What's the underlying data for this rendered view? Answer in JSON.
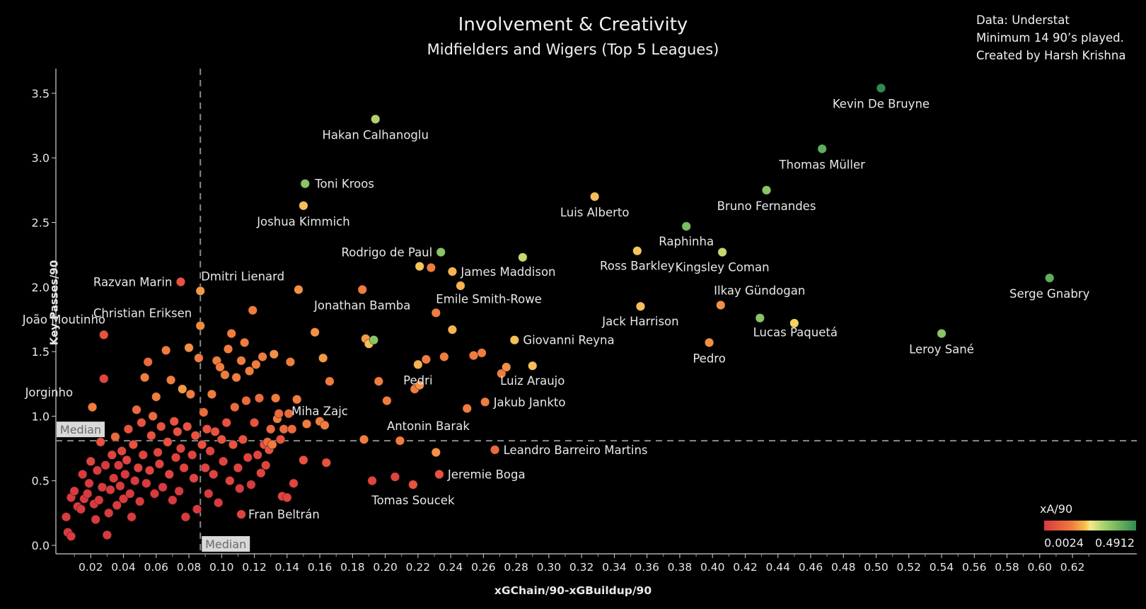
{
  "chart_data": {
    "type": "scatter",
    "title": "Involvement & Creativity",
    "subtitle": "Midfielders and Wigers (Top 5 Leagues)",
    "notes": [
      "Data: Understat",
      "Minimum 14 90’s played.",
      "Created by Harsh Krishna"
    ],
    "xlabel": "xGChain/90-xGBuildup/90",
    "ylabel": "Key Passes/90",
    "xlim": [
      0,
      0.64
    ],
    "ylim": [
      0,
      3.75
    ],
    "x_ticks": [
      "0.02",
      "0.04",
      "0.06",
      "0.08",
      "0.10",
      "0.12",
      "0.14",
      "0.16",
      "0.18",
      "0.20",
      "0.22",
      "0.24",
      "0.26",
      "0.28",
      "0.30",
      "0.32",
      "0.34",
      "0.36",
      "0.38",
      "0.40",
      "0.42",
      "0.44",
      "0.46",
      "0.48",
      "0.50",
      "0.52",
      "0.54",
      "0.56",
      "0.58",
      "0.60",
      "0.62"
    ],
    "y_ticks": [
      "0.0",
      "0.5",
      "1.0",
      "1.5",
      "2.0",
      "2.5",
      "3.0",
      "3.5"
    ],
    "grid": false,
    "median_x": 0.087,
    "median_y": 0.81,
    "median_label": "Median",
    "color_legend": {
      "title": "xA/90",
      "min_label": "0.0024",
      "max_label": "0.4912",
      "colors": [
        "#d93a3e",
        "#f5c24a",
        "#2e8b52"
      ]
    },
    "labeled_points": [
      {
        "name": "Kevin De Bruyne",
        "x": 0.503,
        "y": 3.54,
        "color": "#2e8b52"
      },
      {
        "name": "Hakan Calhanoglu",
        "x": 0.194,
        "y": 3.3,
        "color": "#b5cf6a"
      },
      {
        "name": "Thomas Müller",
        "x": 0.467,
        "y": 3.07,
        "color": "#5fae5e"
      },
      {
        "name": "Toni Kroos",
        "x": 0.151,
        "y": 2.8,
        "color": "#8cc466"
      },
      {
        "name": "Bruno Fernandes",
        "x": 0.433,
        "y": 2.75,
        "color": "#8cc466"
      },
      {
        "name": "Luis Alberto",
        "x": 0.328,
        "y": 2.7,
        "color": "#f6bf57"
      },
      {
        "name": "Joshua Kimmich",
        "x": 0.15,
        "y": 2.63,
        "color": "#f6bf57"
      },
      {
        "name": "Raphinha",
        "x": 0.384,
        "y": 2.47,
        "color": "#7bbd60"
      },
      {
        "name": "Rodrigo de Paul",
        "x": 0.234,
        "y": 2.27,
        "color": "#8cc466"
      },
      {
        "name": "Ross Barkley",
        "x": 0.354,
        "y": 2.28,
        "color": "#f6c55a"
      },
      {
        "name": "Kingsley Coman",
        "x": 0.406,
        "y": 2.27,
        "color": "#c7d870"
      },
      {
        "name": "James Maddison",
        "x": 0.241,
        "y": 2.12,
        "color": "#f6b350"
      },
      {
        "name": "Serge Gnabry",
        "x": 0.606,
        "y": 2.07,
        "color": "#5fae5e"
      },
      {
        "name": "Razvan Marin",
        "x": 0.075,
        "y": 2.04,
        "color": "#e8523f"
      },
      {
        "name": "Dmitri Lienard",
        "x": 0.087,
        "y": 1.97,
        "color": "#f49a45"
      },
      {
        "name": "Jonathan Bamba",
        "x": 0.186,
        "y": 1.98,
        "color": "#f07c3e"
      },
      {
        "name": "Ilkay Gündogan",
        "x": 0.405,
        "y": 1.86,
        "color": "#f49045"
      },
      {
        "name": "Jack Harrison",
        "x": 0.356,
        "y": 1.85,
        "color": "#f6bf57"
      },
      {
        "name": "Christian Eriksen",
        "x": 0.087,
        "y": 1.7,
        "color": "#f08a41"
      },
      {
        "name": "Emile Smith-Rowe",
        "x": 0.231,
        "y": 1.8,
        "color": "#f07c3e"
      },
      {
        "name": "Lucas Paquetá",
        "x": 0.429,
        "y": 1.76,
        "color": "#8cc466"
      },
      {
        "name": "João Moutinho",
        "x": 0.028,
        "y": 1.63,
        "color": "#e8523f"
      },
      {
        "name": "Giovanni Reyna",
        "x": 0.279,
        "y": 1.59,
        "color": "#f6bf57"
      },
      {
        "name": "Leroy Sané",
        "x": 0.54,
        "y": 1.64,
        "color": "#8cc466"
      },
      {
        "name": "Pedro",
        "x": 0.398,
        "y": 1.57,
        "color": "#f49045"
      },
      {
        "name": "Pedri",
        "x": 0.22,
        "y": 1.4,
        "color": "#f6b350"
      },
      {
        "name": "Luiz Araujo",
        "x": 0.29,
        "y": 1.39,
        "color": "#f6bf57"
      },
      {
        "name": "Jorginho",
        "x": 0.021,
        "y": 1.07,
        "color": "#f07c3e"
      },
      {
        "name": "Jakub Jankto",
        "x": 0.261,
        "y": 1.11,
        "color": "#f07c3e"
      },
      {
        "name": "Miha Zajc",
        "x": 0.163,
        "y": 0.93,
        "color": "#f07c3e"
      },
      {
        "name": "Antonin Barak",
        "x": 0.209,
        "y": 0.81,
        "color": "#f07c3e"
      },
      {
        "name": "Leandro Barreiro Martins",
        "x": 0.267,
        "y": 0.74,
        "color": "#ec6a3d"
      },
      {
        "name": "Jeremie Boga",
        "x": 0.233,
        "y": 0.55,
        "color": "#e8523f"
      },
      {
        "name": "Tomas Soucek",
        "x": 0.217,
        "y": 0.47,
        "color": "#e8523f"
      },
      {
        "name": "Fran Beltrán",
        "x": 0.112,
        "y": 0.24,
        "color": "#e0443e"
      }
    ],
    "points": [
      {
        "x": 0.005,
        "y": 0.22,
        "color": "#d93a3e"
      },
      {
        "x": 0.006,
        "y": 0.1,
        "color": "#d93a3e"
      },
      {
        "x": 0.008,
        "y": 0.07,
        "color": "#d93a3e"
      },
      {
        "x": 0.008,
        "y": 0.37,
        "color": "#d93a3e"
      },
      {
        "x": 0.01,
        "y": 0.42,
        "color": "#d93a3e"
      },
      {
        "x": 0.012,
        "y": 0.3,
        "color": "#d93a3e"
      },
      {
        "x": 0.014,
        "y": 0.28,
        "color": "#d93a3e"
      },
      {
        "x": 0.015,
        "y": 0.55,
        "color": "#d93a3e"
      },
      {
        "x": 0.016,
        "y": 0.36,
        "color": "#d93a3e"
      },
      {
        "x": 0.018,
        "y": 0.4,
        "color": "#d93a3e"
      },
      {
        "x": 0.019,
        "y": 0.48,
        "color": "#d93a3e"
      },
      {
        "x": 0.02,
        "y": 0.65,
        "color": "#e0443e"
      },
      {
        "x": 0.022,
        "y": 0.32,
        "color": "#d93a3e"
      },
      {
        "x": 0.023,
        "y": 0.2,
        "color": "#d93a3e"
      },
      {
        "x": 0.024,
        "y": 0.58,
        "color": "#d93a3e"
      },
      {
        "x": 0.025,
        "y": 0.35,
        "color": "#d93a3e"
      },
      {
        "x": 0.026,
        "y": 0.8,
        "color": "#e8523f"
      },
      {
        "x": 0.027,
        "y": 0.45,
        "color": "#d93a3e"
      },
      {
        "x": 0.028,
        "y": 1.29,
        "color": "#e0443e"
      },
      {
        "x": 0.029,
        "y": 0.62,
        "color": "#d93a3e"
      },
      {
        "x": 0.03,
        "y": 0.08,
        "color": "#d93a3e"
      },
      {
        "x": 0.031,
        "y": 0.25,
        "color": "#d93a3e"
      },
      {
        "x": 0.032,
        "y": 0.43,
        "color": "#d93a3e"
      },
      {
        "x": 0.033,
        "y": 0.7,
        "color": "#e0443e"
      },
      {
        "x": 0.034,
        "y": 0.52,
        "color": "#d93a3e"
      },
      {
        "x": 0.035,
        "y": 0.84,
        "color": "#ec6a3d"
      },
      {
        "x": 0.036,
        "y": 0.31,
        "color": "#d93a3e"
      },
      {
        "x": 0.037,
        "y": 0.62,
        "color": "#d93a3e"
      },
      {
        "x": 0.038,
        "y": 0.46,
        "color": "#d93a3e"
      },
      {
        "x": 0.039,
        "y": 0.73,
        "color": "#e0443e"
      },
      {
        "x": 0.04,
        "y": 0.36,
        "color": "#d93a3e"
      },
      {
        "x": 0.041,
        "y": 0.55,
        "color": "#d93a3e"
      },
      {
        "x": 0.042,
        "y": 0.66,
        "color": "#e0443e"
      },
      {
        "x": 0.043,
        "y": 0.9,
        "color": "#e8523f"
      },
      {
        "x": 0.044,
        "y": 0.4,
        "color": "#d93a3e"
      },
      {
        "x": 0.045,
        "y": 0.22,
        "color": "#d93a3e"
      },
      {
        "x": 0.046,
        "y": 0.78,
        "color": "#e8523f"
      },
      {
        "x": 0.047,
        "y": 0.5,
        "color": "#d93a3e"
      },
      {
        "x": 0.048,
        "y": 1.05,
        "color": "#ec6a3d"
      },
      {
        "x": 0.049,
        "y": 0.6,
        "color": "#e0443e"
      },
      {
        "x": 0.05,
        "y": 0.34,
        "color": "#d93a3e"
      },
      {
        "x": 0.051,
        "y": 0.95,
        "color": "#e8523f"
      },
      {
        "x": 0.052,
        "y": 0.7,
        "color": "#e0443e"
      },
      {
        "x": 0.053,
        "y": 1.3,
        "color": "#f07c3e"
      },
      {
        "x": 0.054,
        "y": 0.48,
        "color": "#d93a3e"
      },
      {
        "x": 0.055,
        "y": 1.42,
        "color": "#ec6a3d"
      },
      {
        "x": 0.056,
        "y": 0.58,
        "color": "#e0443e"
      },
      {
        "x": 0.057,
        "y": 0.85,
        "color": "#e8523f"
      },
      {
        "x": 0.058,
        "y": 1.0,
        "color": "#ec6a3d"
      },
      {
        "x": 0.059,
        "y": 0.4,
        "color": "#d93a3e"
      },
      {
        "x": 0.06,
        "y": 1.15,
        "color": "#f07c3e"
      },
      {
        "x": 0.061,
        "y": 0.72,
        "color": "#e0443e"
      },
      {
        "x": 0.062,
        "y": 0.63,
        "color": "#e0443e"
      },
      {
        "x": 0.063,
        "y": 0.92,
        "color": "#e8523f"
      },
      {
        "x": 0.064,
        "y": 0.45,
        "color": "#d93a3e"
      },
      {
        "x": 0.066,
        "y": 1.51,
        "color": "#f07c3e"
      },
      {
        "x": 0.067,
        "y": 0.8,
        "color": "#e8523f"
      },
      {
        "x": 0.068,
        "y": 0.55,
        "color": "#e0443e"
      },
      {
        "x": 0.069,
        "y": 1.28,
        "color": "#f07c3e"
      },
      {
        "x": 0.07,
        "y": 0.35,
        "color": "#d93a3e"
      },
      {
        "x": 0.071,
        "y": 0.96,
        "color": "#e8523f"
      },
      {
        "x": 0.072,
        "y": 0.68,
        "color": "#e0443e"
      },
      {
        "x": 0.073,
        "y": 0.88,
        "color": "#e8523f"
      },
      {
        "x": 0.074,
        "y": 0.42,
        "color": "#d93a3e"
      },
      {
        "x": 0.075,
        "y": 0.75,
        "color": "#e0443e"
      },
      {
        "x": 0.076,
        "y": 1.21,
        "color": "#f49a45"
      },
      {
        "x": 0.077,
        "y": 0.6,
        "color": "#e0443e"
      },
      {
        "x": 0.078,
        "y": 0.22,
        "color": "#d93a3e"
      },
      {
        "x": 0.079,
        "y": 0.92,
        "color": "#e8523f"
      },
      {
        "x": 0.08,
        "y": 1.53,
        "color": "#f49045"
      },
      {
        "x": 0.081,
        "y": 1.17,
        "color": "#f07c3e"
      },
      {
        "x": 0.082,
        "y": 0.7,
        "color": "#e0443e"
      },
      {
        "x": 0.083,
        "y": 0.52,
        "color": "#e0443e"
      },
      {
        "x": 0.084,
        "y": 0.85,
        "color": "#e8523f"
      },
      {
        "x": 0.085,
        "y": 0.28,
        "color": "#d93a3e"
      },
      {
        "x": 0.086,
        "y": 1.45,
        "color": "#f07c3e"
      },
      {
        "x": 0.088,
        "y": 0.78,
        "color": "#e8523f"
      },
      {
        "x": 0.089,
        "y": 1.03,
        "color": "#ec6a3d"
      },
      {
        "x": 0.09,
        "y": 0.6,
        "color": "#e0443e"
      },
      {
        "x": 0.091,
        "y": 0.9,
        "color": "#e8523f"
      },
      {
        "x": 0.092,
        "y": 0.4,
        "color": "#d93a3e"
      },
      {
        "x": 0.093,
        "y": 0.73,
        "color": "#e0443e"
      },
      {
        "x": 0.094,
        "y": 1.17,
        "color": "#f07c3e"
      },
      {
        "x": 0.095,
        "y": 0.55,
        "color": "#e0443e"
      },
      {
        "x": 0.096,
        "y": 0.88,
        "color": "#e8523f"
      },
      {
        "x": 0.097,
        "y": 1.43,
        "color": "#f07c3e"
      },
      {
        "x": 0.098,
        "y": 0.33,
        "color": "#d93a3e"
      },
      {
        "x": 0.099,
        "y": 1.38,
        "color": "#f07c3e"
      },
      {
        "x": 0.1,
        "y": 0.82,
        "color": "#e8523f"
      },
      {
        "x": 0.101,
        "y": 0.65,
        "color": "#e0443e"
      },
      {
        "x": 0.102,
        "y": 1.32,
        "color": "#f07c3e"
      },
      {
        "x": 0.103,
        "y": 0.95,
        "color": "#e8523f"
      },
      {
        "x": 0.104,
        "y": 1.52,
        "color": "#f07c3e"
      },
      {
        "x": 0.105,
        "y": 0.5,
        "color": "#e0443e"
      },
      {
        "x": 0.106,
        "y": 1.64,
        "color": "#f07c3e"
      },
      {
        "x": 0.107,
        "y": 0.78,
        "color": "#e8523f"
      },
      {
        "x": 0.108,
        "y": 1.07,
        "color": "#ec6a3d"
      },
      {
        "x": 0.109,
        "y": 1.3,
        "color": "#f07c3e"
      },
      {
        "x": 0.11,
        "y": 0.6,
        "color": "#e0443e"
      },
      {
        "x": 0.111,
        "y": 0.44,
        "color": "#d93a3e"
      },
      {
        "x": 0.112,
        "y": 1.43,
        "color": "#f07c3e"
      },
      {
        "x": 0.113,
        "y": 0.82,
        "color": "#e8523f"
      },
      {
        "x": 0.114,
        "y": 1.57,
        "color": "#f07c3e"
      },
      {
        "x": 0.115,
        "y": 1.12,
        "color": "#ec6a3d"
      },
      {
        "x": 0.116,
        "y": 0.68,
        "color": "#e0443e"
      },
      {
        "x": 0.117,
        "y": 1.35,
        "color": "#f07c3e"
      },
      {
        "x": 0.118,
        "y": 0.47,
        "color": "#d93a3e"
      },
      {
        "x": 0.119,
        "y": 1.82,
        "color": "#f07c3e"
      },
      {
        "x": 0.12,
        "y": 0.95,
        "color": "#e8523f"
      },
      {
        "x": 0.121,
        "y": 1.4,
        "color": "#f07c3e"
      },
      {
        "x": 0.122,
        "y": 0.7,
        "color": "#e0443e"
      },
      {
        "x": 0.123,
        "y": 1.14,
        "color": "#ec6a3d"
      },
      {
        "x": 0.124,
        "y": 0.56,
        "color": "#e0443e"
      },
      {
        "x": 0.125,
        "y": 1.46,
        "color": "#f07c3e"
      },
      {
        "x": 0.126,
        "y": 0.78,
        "color": "#e8523f"
      },
      {
        "x": 0.127,
        "y": 0.62,
        "color": "#e0443e"
      },
      {
        "x": 0.128,
        "y": 0.8,
        "color": "#ec6a3d"
      },
      {
        "x": 0.129,
        "y": 0.74,
        "color": "#e8523f"
      },
      {
        "x": 0.13,
        "y": 0.9,
        "color": "#ec6a3d"
      },
      {
        "x": 0.131,
        "y": 0.78,
        "color": "#f07c3e"
      },
      {
        "x": 0.132,
        "y": 1.48,
        "color": "#f49045"
      },
      {
        "x": 0.133,
        "y": 1.14,
        "color": "#f07c3e"
      },
      {
        "x": 0.134,
        "y": 0.98,
        "color": "#f07c3e"
      },
      {
        "x": 0.135,
        "y": 1.02,
        "color": "#ec6a3d"
      },
      {
        "x": 0.136,
        "y": 0.82,
        "color": "#e8523f"
      },
      {
        "x": 0.137,
        "y": 0.38,
        "color": "#e0443e"
      },
      {
        "x": 0.138,
        "y": 0.9,
        "color": "#ec6a3d"
      },
      {
        "x": 0.14,
        "y": 0.37,
        "color": "#e0443e"
      },
      {
        "x": 0.141,
        "y": 1.02,
        "color": "#ec6a3d"
      },
      {
        "x": 0.142,
        "y": 1.42,
        "color": "#f07c3e"
      },
      {
        "x": 0.143,
        "y": 0.9,
        "color": "#ec6a3d"
      },
      {
        "x": 0.144,
        "y": 0.48,
        "color": "#e0443e"
      },
      {
        "x": 0.146,
        "y": 1.13,
        "color": "#f07c3e"
      },
      {
        "x": 0.147,
        "y": 1.98,
        "color": "#f49045"
      },
      {
        "x": 0.15,
        "y": 0.66,
        "color": "#e8523f"
      },
      {
        "x": 0.152,
        "y": 0.94,
        "color": "#f07c3e"
      },
      {
        "x": 0.157,
        "y": 1.65,
        "color": "#f49045"
      },
      {
        "x": 0.16,
        "y": 0.96,
        "color": "#f07c3e"
      },
      {
        "x": 0.162,
        "y": 1.45,
        "color": "#f49a45"
      },
      {
        "x": 0.164,
        "y": 0.64,
        "color": "#e8523f"
      },
      {
        "x": 0.166,
        "y": 1.27,
        "color": "#f07c3e"
      },
      {
        "x": 0.187,
        "y": 0.82,
        "color": "#f07c3e"
      },
      {
        "x": 0.188,
        "y": 1.6,
        "color": "#f49a45"
      },
      {
        "x": 0.19,
        "y": 1.56,
        "color": "#f6bf57"
      },
      {
        "x": 0.192,
        "y": 0.5,
        "color": "#e0443e"
      },
      {
        "x": 0.196,
        "y": 1.27,
        "color": "#f07c3e"
      },
      {
        "x": 0.201,
        "y": 1.12,
        "color": "#f07c3e"
      },
      {
        "x": 0.206,
        "y": 0.53,
        "color": "#e0443e"
      },
      {
        "x": 0.218,
        "y": 1.21,
        "color": "#f07c3e"
      },
      {
        "x": 0.221,
        "y": 1.24,
        "color": "#f49045"
      },
      {
        "x": 0.221,
        "y": 2.16,
        "color": "#f6c55a"
      },
      {
        "x": 0.225,
        "y": 1.44,
        "color": "#f07c3e"
      },
      {
        "x": 0.228,
        "y": 2.15,
        "color": "#f07c3e"
      },
      {
        "x": 0.231,
        "y": 0.72,
        "color": "#f49045"
      },
      {
        "x": 0.236,
        "y": 1.46,
        "color": "#f07c3e"
      },
      {
        "x": 0.241,
        "y": 1.67,
        "color": "#f6b350"
      },
      {
        "x": 0.246,
        "y": 2.01,
        "color": "#f6b350"
      },
      {
        "x": 0.25,
        "y": 1.06,
        "color": "#f07c3e"
      },
      {
        "x": 0.254,
        "y": 1.47,
        "color": "#f07c3e"
      },
      {
        "x": 0.259,
        "y": 1.49,
        "color": "#f07c3e"
      },
      {
        "x": 0.271,
        "y": 1.33,
        "color": "#f07c3e"
      },
      {
        "x": 0.274,
        "y": 1.38,
        "color": "#f49045"
      },
      {
        "x": 0.284,
        "y": 2.23,
        "color": "#c7d870"
      },
      {
        "x": 0.45,
        "y": 1.72,
        "color": "#f6d35e"
      },
      {
        "x": 0.193,
        "y": 1.59,
        "color": "#8cc466"
      }
    ]
  }
}
